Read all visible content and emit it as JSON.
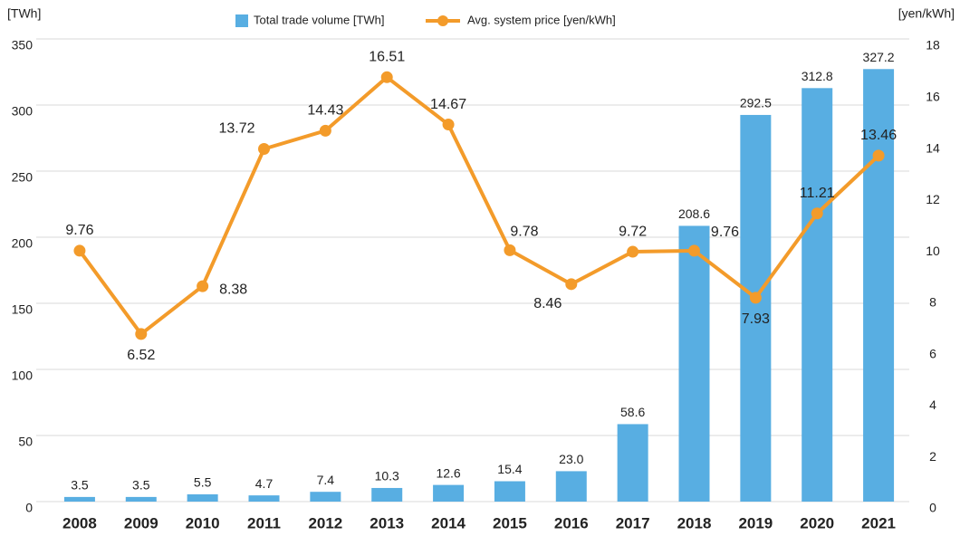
{
  "chart_data": {
    "type": "combo",
    "y_label": "[TWh]",
    "y2_label": "[yen/kWh]",
    "categories": [
      "2008",
      "2009",
      "2010",
      "2011",
      "2012",
      "2013",
      "2014",
      "2015",
      "2016",
      "2017",
      "2018",
      "2019",
      "2020",
      "2021"
    ],
    "series": [
      {
        "name": "Total trade volume [TWh]",
        "type": "bar",
        "color": "#58aee2",
        "values": [
          3.5,
          3.5,
          5.5,
          4.7,
          7.4,
          10.3,
          12.6,
          15.4,
          23.0,
          58.6,
          208.6,
          292.5,
          312.8,
          327.2
        ],
        "value_labels": [
          "3.5",
          "3.5",
          "5.5",
          "4.7",
          "7.4",
          "10.3",
          "12.6",
          "15.4",
          "23.0",
          "58.6",
          "208.6",
          "292.5",
          "312.8",
          "327.2"
        ]
      },
      {
        "name": "Avg. system price [yen/kWh]",
        "type": "line",
        "axis": "y2",
        "color": "#f39b2a",
        "values": [
          9.76,
          6.52,
          8.38,
          13.72,
          14.43,
          16.51,
          14.67,
          9.78,
          8.46,
          9.72,
          9.76,
          7.93,
          11.21,
          13.46
        ]
      }
    ],
    "ylim": [
      0,
      350
    ],
    "yticks": [
      0,
      50,
      100,
      150,
      200,
      250,
      300,
      350
    ],
    "y2lim": [
      0,
      18
    ],
    "y2ticks": [
      0,
      2,
      4,
      6,
      8,
      10,
      12,
      14,
      16,
      18
    ],
    "grid": true,
    "legend": "top"
  }
}
